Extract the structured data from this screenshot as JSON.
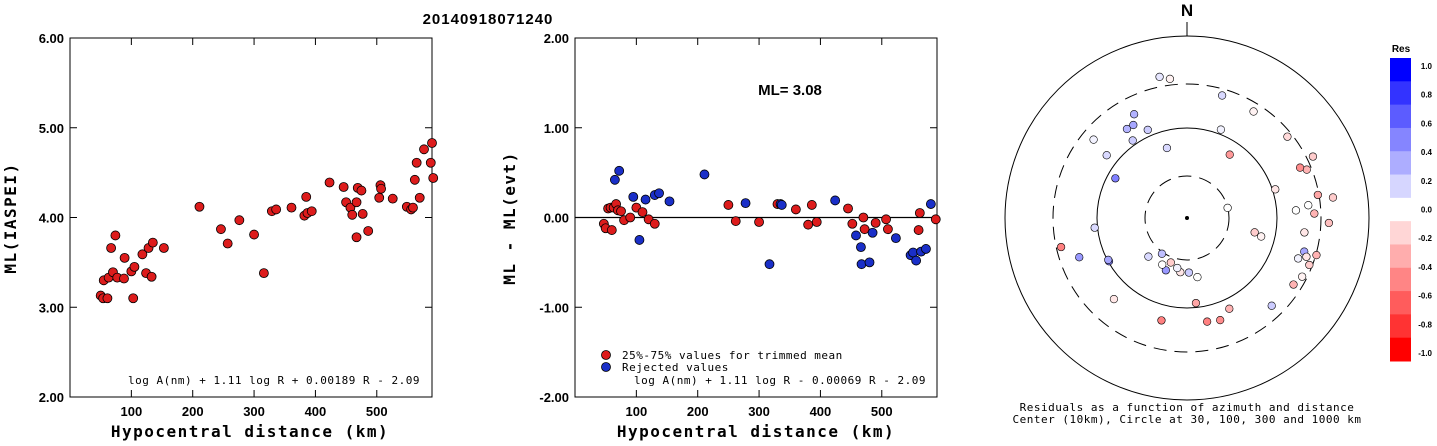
{
  "title": "20140918071240",
  "chart_data": [
    {
      "type": "scatter",
      "ylabel": "ML(IASPEI)",
      "xlabel": "Hypocentral distance (km)",
      "xlim": [
        0,
        590
      ],
      "ylim": [
        2.0,
        6.0
      ],
      "xticks": [
        "100",
        "200",
        "300",
        "400",
        "500"
      ],
      "yticks": [
        "2.00",
        "3.00",
        "4.00",
        "5.00",
        "6.00"
      ],
      "formula": "log A(nm) + 1.11 log R + 0.00189 R - 2.09",
      "point_color": "#dd1c1c",
      "points": [
        [
          50,
          3.13
        ],
        [
          54,
          3.1
        ],
        [
          55,
          3.3
        ],
        [
          61,
          3.1
        ],
        [
          63,
          3.33
        ],
        [
          67,
          3.66
        ],
        [
          70,
          3.39
        ],
        [
          74,
          3.8
        ],
        [
          77,
          3.33
        ],
        [
          88,
          3.32
        ],
        [
          89,
          3.55
        ],
        [
          100,
          3.4
        ],
        [
          103,
          3.1
        ],
        [
          105,
          3.45
        ],
        [
          118,
          3.59
        ],
        [
          124,
          3.38
        ],
        [
          128,
          3.66
        ],
        [
          133,
          3.34
        ],
        [
          135,
          3.72
        ],
        [
          153,
          3.66
        ],
        [
          211,
          4.12
        ],
        [
          246,
          3.87
        ],
        [
          257,
          3.71
        ],
        [
          276,
          3.97
        ],
        [
          300,
          3.81
        ],
        [
          316,
          3.38
        ],
        [
          329,
          4.07
        ],
        [
          336,
          4.09
        ],
        [
          361,
          4.11
        ],
        [
          382,
          4.02
        ],
        [
          385,
          4.23
        ],
        [
          387,
          4.05
        ],
        [
          394,
          4.07
        ],
        [
          423,
          4.39
        ],
        [
          446,
          4.34
        ],
        [
          450,
          4.17
        ],
        [
          457,
          4.11
        ],
        [
          460,
          4.03
        ],
        [
          467,
          4.17
        ],
        [
          467,
          3.78
        ],
        [
          469,
          4.33
        ],
        [
          475,
          4.3
        ],
        [
          477,
          4.04
        ],
        [
          486,
          3.85
        ],
        [
          504,
          4.22
        ],
        [
          506,
          4.36
        ],
        [
          507,
          4.32
        ],
        [
          526,
          4.21
        ],
        [
          549,
          4.12
        ],
        [
          556,
          4.09
        ],
        [
          559,
          4.11
        ],
        [
          562,
          4.42
        ],
        [
          565,
          4.61
        ],
        [
          577,
          4.76
        ],
        [
          588,
          4.61
        ],
        [
          590,
          4.83
        ],
        [
          592,
          4.44
        ],
        [
          570,
          4.22
        ]
      ]
    },
    {
      "type": "scatter",
      "ylabel": "ML - ML(evt)",
      "xlabel": "Hypocentral distance (km)",
      "xlim": [
        0,
        590
      ],
      "ylim": [
        -2.0,
        2.0
      ],
      "xticks": [
        "100",
        "200",
        "300",
        "400",
        "500"
      ],
      "yticks": [
        "-2.00",
        "-1.00",
        "0.00",
        "1.00",
        "2.00"
      ],
      "ml_text": "ML= 3.08",
      "formula": "log A(nm) + 1.11 log R - 0.00069 R - 2.09",
      "legend": [
        {
          "label": "25%-75% values for trimmed mean",
          "color": "#dd1c1c"
        },
        {
          "label": "Rejected values",
          "color": "#1a2fc8"
        }
      ],
      "reference_line_y": 0.0,
      "accepted": [
        [
          47,
          -0.07
        ],
        [
          50,
          -0.12
        ],
        [
          54,
          0.1
        ],
        [
          58,
          0.11
        ],
        [
          60,
          -0.14
        ],
        [
          63,
          0.11
        ],
        [
          67,
          0.15
        ],
        [
          70,
          0.08
        ],
        [
          75,
          0.07
        ],
        [
          80,
          -0.03
        ],
        [
          90,
          0.0
        ],
        [
          100,
          0.11
        ],
        [
          110,
          0.06
        ],
        [
          120,
          -0.02
        ],
        [
          130,
          -0.07
        ],
        [
          250,
          0.14
        ],
        [
          262,
          -0.04
        ],
        [
          300,
          -0.05
        ],
        [
          330,
          0.15
        ],
        [
          360,
          0.09
        ],
        [
          380,
          -0.08
        ],
        [
          386,
          0.14
        ],
        [
          394,
          -0.05
        ],
        [
          445,
          0.1
        ],
        [
          452,
          -0.07
        ],
        [
          470,
          0.0
        ],
        [
          472,
          -0.13
        ],
        [
          490,
          -0.06
        ],
        [
          507,
          -0.02
        ],
        [
          510,
          -0.13
        ],
        [
          562,
          0.05
        ],
        [
          560,
          -0.14
        ],
        [
          588,
          -0.02
        ]
      ],
      "rejected": [
        [
          65,
          0.42
        ],
        [
          72,
          0.52
        ],
        [
          95,
          0.23
        ],
        [
          105,
          -0.25
        ],
        [
          115,
          0.2
        ],
        [
          130,
          0.25
        ],
        [
          137,
          0.27
        ],
        [
          154,
          0.18
        ],
        [
          211,
          0.48
        ],
        [
          278,
          0.16
        ],
        [
          317,
          -0.52
        ],
        [
          335,
          0.15
        ],
        [
          337,
          0.14
        ],
        [
          424,
          0.19
        ],
        [
          458,
          -0.2
        ],
        [
          466,
          -0.33
        ],
        [
          467,
          -0.52
        ],
        [
          480,
          -0.5
        ],
        [
          485,
          -0.17
        ],
        [
          523,
          -0.23
        ],
        [
          547,
          -0.42
        ],
        [
          551,
          -0.39
        ],
        [
          556,
          -0.48
        ],
        [
          564,
          -0.38
        ],
        [
          572,
          -0.35
        ],
        [
          580,
          0.15
        ]
      ]
    },
    {
      "type": "polar_scatter",
      "north_label": "N",
      "caption_line1": "Residuals as a function of azimuth and distance",
      "caption_line2": "Center (10km), Circle at 30, 100, 300 and 1000 km",
      "rings_km": [
        30,
        100,
        300,
        1000
      ],
      "colorbar": {
        "title": "Res",
        "labels": [
          "1.0",
          "0.8",
          "0.6",
          "0.4",
          "0.2",
          "0.0",
          "-0.2",
          "-0.4",
          "-0.6",
          "-0.8",
          "-1.0"
        ],
        "colors": [
          "#0000ff",
          "#3333ff",
          "#5c5cff",
          "#8585ff",
          "#adadff",
          "#d6d6ff",
          "#ffffff",
          "#ffd6d6",
          "#ffadad",
          "#ff8585",
          "#ff5c5c",
          "#ff3333",
          "#ff0000"
        ]
      },
      "stations": [
        {
          "az": 349,
          "r": 0.79,
          "res": 0.1
        },
        {
          "az": 353,
          "r": 0.77,
          "res": -0.05
        },
        {
          "az": 16,
          "r": 0.7,
          "res": 0.15
        },
        {
          "az": 32,
          "r": 0.69,
          "res": -0.05
        },
        {
          "az": 51,
          "r": 0.71,
          "res": -0.15
        },
        {
          "az": 64,
          "r": 0.77,
          "res": -0.2
        },
        {
          "az": 68,
          "r": 0.71,
          "res": -0.3
        },
        {
          "az": 66,
          "r": 0.68,
          "res": -0.45
        },
        {
          "az": 80,
          "r": 0.73,
          "res": -0.35
        },
        {
          "az": 82,
          "r": 0.81,
          "res": -0.2
        },
        {
          "az": 84,
          "r": 0.67,
          "res": 0.0
        },
        {
          "az": 86,
          "r": 0.6,
          "res": 0.0
        },
        {
          "az": 88,
          "r": 0.7,
          "res": -0.3
        },
        {
          "az": 92,
          "r": 0.78,
          "res": -0.25
        },
        {
          "az": 97,
          "r": 0.65,
          "res": -0.1
        },
        {
          "az": 106,
          "r": 0.67,
          "res": 0.35
        },
        {
          "az": 106,
          "r": 0.74,
          "res": -0.3
        },
        {
          "az": 110,
          "r": 0.65,
          "res": 0.05
        },
        {
          "az": 108,
          "r": 0.69,
          "res": -0.1
        },
        {
          "az": 111,
          "r": 0.72,
          "res": -0.2
        },
        {
          "az": 117,
          "r": 0.71,
          "res": -0.05
        },
        {
          "az": 122,
          "r": 0.69,
          "res": -0.3
        },
        {
          "az": 72,
          "r": 0.51,
          "res": -0.1
        },
        {
          "az": 76,
          "r": 0.23,
          "res": 0.0
        },
        {
          "az": 102,
          "r": 0.38,
          "res": -0.2
        },
        {
          "az": 104,
          "r": 0.42,
          "res": -0.05
        },
        {
          "az": 136,
          "r": 0.67,
          "res": 0.2
        },
        {
          "az": 155,
          "r": 0.55,
          "res": -0.3
        },
        {
          "az": 162,
          "r": 0.59,
          "res": -0.45
        },
        {
          "az": 169,
          "r": 0.58,
          "res": -0.5
        },
        {
          "az": 174,
          "r": 0.47,
          "res": -0.35
        },
        {
          "az": 194,
          "r": 0.58,
          "res": -0.5
        },
        {
          "az": 170,
          "r": 0.33,
          "res": 0.0
        },
        {
          "az": 178,
          "r": 0.3,
          "res": 0.2
        },
        {
          "az": 187,
          "r": 0.3,
          "res": -0.1
        },
        {
          "az": 191,
          "r": 0.28,
          "res": 0.05
        },
        {
          "az": 200,
          "r": 0.26,
          "res": -0.2
        },
        {
          "az": 202,
          "r": 0.31,
          "res": 0.4
        },
        {
          "az": 208,
          "r": 0.29,
          "res": 0.0
        },
        {
          "az": 215,
          "r": 0.24,
          "res": 0.25
        },
        {
          "az": 225,
          "r": 0.3,
          "res": 0.15
        },
        {
          "az": 241,
          "r": 0.49,
          "res": 0.5
        },
        {
          "az": 242,
          "r": 0.49,
          "res": 0.35
        },
        {
          "az": 257,
          "r": 0.71,
          "res": -0.5
        },
        {
          "az": 250,
          "r": 0.63,
          "res": 0.4
        },
        {
          "az": 222,
          "r": 0.6,
          "res": -0.1
        },
        {
          "az": 264,
          "r": 0.51,
          "res": 0.15
        },
        {
          "az": 299,
          "r": 0.45,
          "res": 0.5
        },
        {
          "az": 308,
          "r": 0.56,
          "res": 0.15
        },
        {
          "az": 310,
          "r": 0.67,
          "res": 0.05
        },
        {
          "az": 325,
          "r": 0.52,
          "res": 0.2
        },
        {
          "az": 326,
          "r": 0.59,
          "res": 0.3
        },
        {
          "az": 330,
          "r": 0.59,
          "res": 0.35
        },
        {
          "az": 336,
          "r": 0.53,
          "res": 0.2
        },
        {
          "az": 344,
          "r": 0.4,
          "res": 0.15
        },
        {
          "az": 333,
          "r": 0.64,
          "res": 0.3
        },
        {
          "az": 34,
          "r": 0.42,
          "res": -0.4
        },
        {
          "az": 21,
          "r": 0.52,
          "res": 0.05
        }
      ]
    }
  ]
}
